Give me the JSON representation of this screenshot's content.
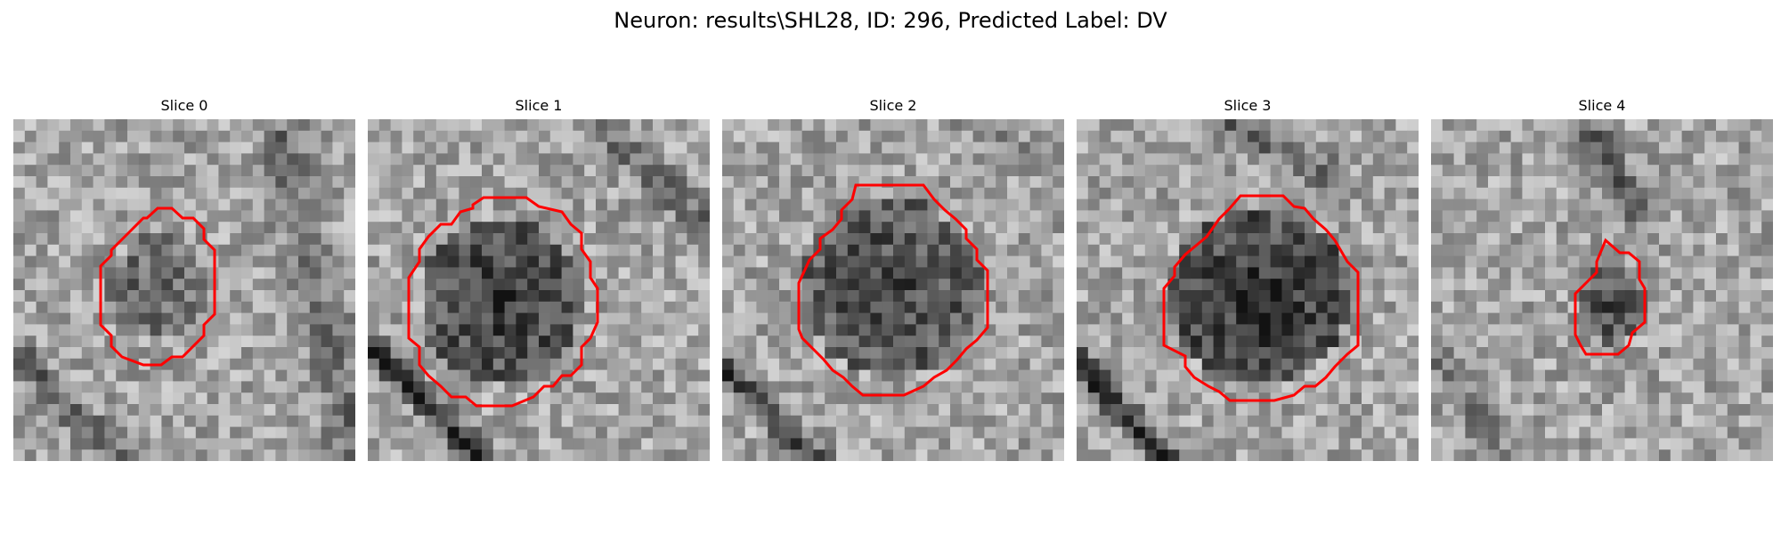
{
  "figure": {
    "title": "Neuron: results\\SHL28, ID: 296, Predicted Label: DV"
  },
  "slices": [
    {
      "title": "Slice 0",
      "contour_color": "#ff0000"
    },
    {
      "title": "Slice 1",
      "contour_color": "#ff0000"
    },
    {
      "title": "Slice 2",
      "contour_color": "#ff0000"
    },
    {
      "title": "Slice 3",
      "contour_color": "#ff0000"
    },
    {
      "title": "Slice 4",
      "contour_color": "#ff0000"
    }
  ]
}
